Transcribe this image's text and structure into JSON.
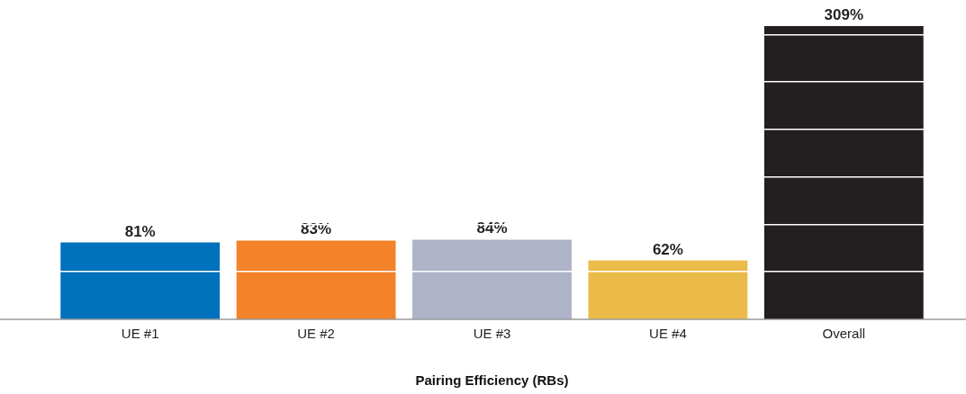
{
  "chart_data": {
    "type": "bar",
    "xlabel": "Pairing Efficiency (RBs)",
    "categories": [
      "UE #1",
      "UE #2",
      "UE #3",
      "UE #4",
      "Overall"
    ],
    "values": [
      81,
      83,
      84,
      62,
      309
    ],
    "colors": [
      "#0071bc",
      "#f38228",
      "#aeb3c7",
      "#ebbb4a",
      "#231f20"
    ],
    "value_labels": [
      "81%",
      "83%",
      "84%",
      "62%",
      "309%"
    ],
    "yticks": [
      {
        "value": 50,
        "label": null
      },
      {
        "value": 100,
        "label": null
      },
      {
        "value": 150,
        "label": null
      },
      {
        "value": 200,
        "label": null
      },
      {
        "value": 250,
        "label": null
      },
      {
        "value": 300,
        "label": null
      }
    ],
    "grid": "y",
    "tick_labels": "x",
    "legend": false
  }
}
